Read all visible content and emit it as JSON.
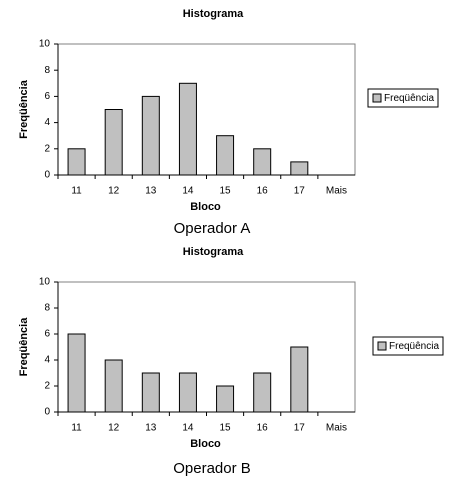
{
  "chart_data": [
    {
      "type": "bar",
      "title": "Histograma",
      "x_label": "Bloco",
      "y_label": "Freqüência",
      "categories": [
        "11",
        "12",
        "13",
        "14",
        "15",
        "16",
        "17",
        "Mais"
      ],
      "series": [
        {
          "name": "Freqüência",
          "color": "#c0c0c0",
          "values": [
            2,
            5,
            6,
            7,
            3,
            2,
            1,
            0
          ]
        }
      ],
      "ylim": [
        0,
        10
      ],
      "yticks": [
        0,
        2,
        4,
        6,
        8,
        10
      ],
      "grid": false,
      "legend": "right"
    },
    {
      "type": "bar",
      "title": "Histograma",
      "x_label": "Bloco",
      "y_label": "Freqüência",
      "categories": [
        "11",
        "12",
        "13",
        "14",
        "15",
        "16",
        "17",
        "Mais"
      ],
      "series": [
        {
          "name": "Freqüência",
          "color": "#c0c0c0",
          "values": [
            6,
            4,
            3,
            3,
            2,
            3,
            5,
            0
          ]
        }
      ],
      "ylim": [
        0,
        10
      ],
      "yticks": [
        0,
        2,
        4,
        6,
        8,
        10
      ],
      "grid": false,
      "legend": "right"
    }
  ],
  "captions": [
    "Operador A",
    "Operador B"
  ]
}
